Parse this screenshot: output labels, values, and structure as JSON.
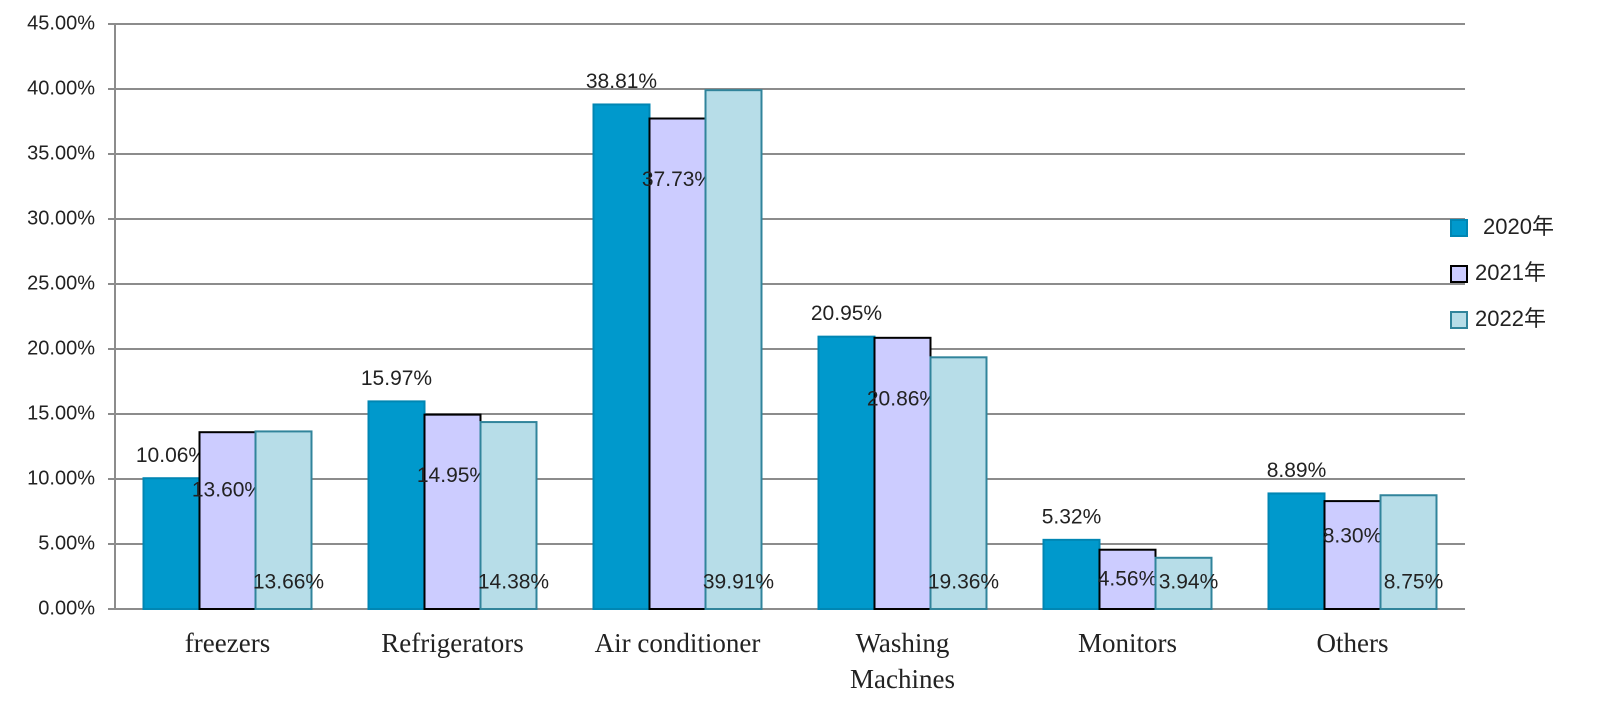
{
  "chart_data": {
    "type": "bar",
    "categories": [
      "freezers",
      "Refrigerators",
      "Air conditioner",
      "Washing Machines",
      "Monitors",
      "Others"
    ],
    "series": [
      {
        "name": "2020年",
        "color": "#0099cc",
        "values": [
          10.06,
          15.97,
          38.81,
          20.95,
          5.32,
          8.89
        ],
        "value_labels": [
          "10.06%",
          "15.97%",
          "38.81%",
          "20.95%",
          "5.32%",
          "8.89%"
        ]
      },
      {
        "name": "2021年",
        "color": "#ccccff",
        "values": [
          13.6,
          14.95,
          37.73,
          20.86,
          4.56,
          8.3
        ],
        "value_labels": [
          "13.60%",
          "14.95%",
          "37.73%",
          "20.86%",
          "4.56%",
          "8.30%"
        ]
      },
      {
        "name": "2022年",
        "color": "#b7dde8",
        "values": [
          13.66,
          14.38,
          39.91,
          19.36,
          3.94,
          8.75
        ],
        "value_labels": [
          "13.66%",
          "14.38%",
          "39.91%",
          "19.36%",
          "3.94%",
          "8.75%"
        ]
      }
    ],
    "ylim": [
      0,
      45
    ],
    "yticks": [
      {
        "value": 0,
        "label": "0.00%"
      },
      {
        "value": 5,
        "label": "5.00%"
      },
      {
        "value": 10,
        "label": "10.00%"
      },
      {
        "value": 15,
        "label": "15.00%"
      },
      {
        "value": 20,
        "label": "20.00%"
      },
      {
        "value": 25,
        "label": "25.00%"
      },
      {
        "value": 30,
        "label": "30.00%"
      },
      {
        "value": 35,
        "label": "35.00%"
      },
      {
        "value": 40,
        "label": "40.00%"
      },
      {
        "value": 45,
        "label": "45.00%"
      }
    ],
    "grid": true,
    "legend": "right"
  }
}
